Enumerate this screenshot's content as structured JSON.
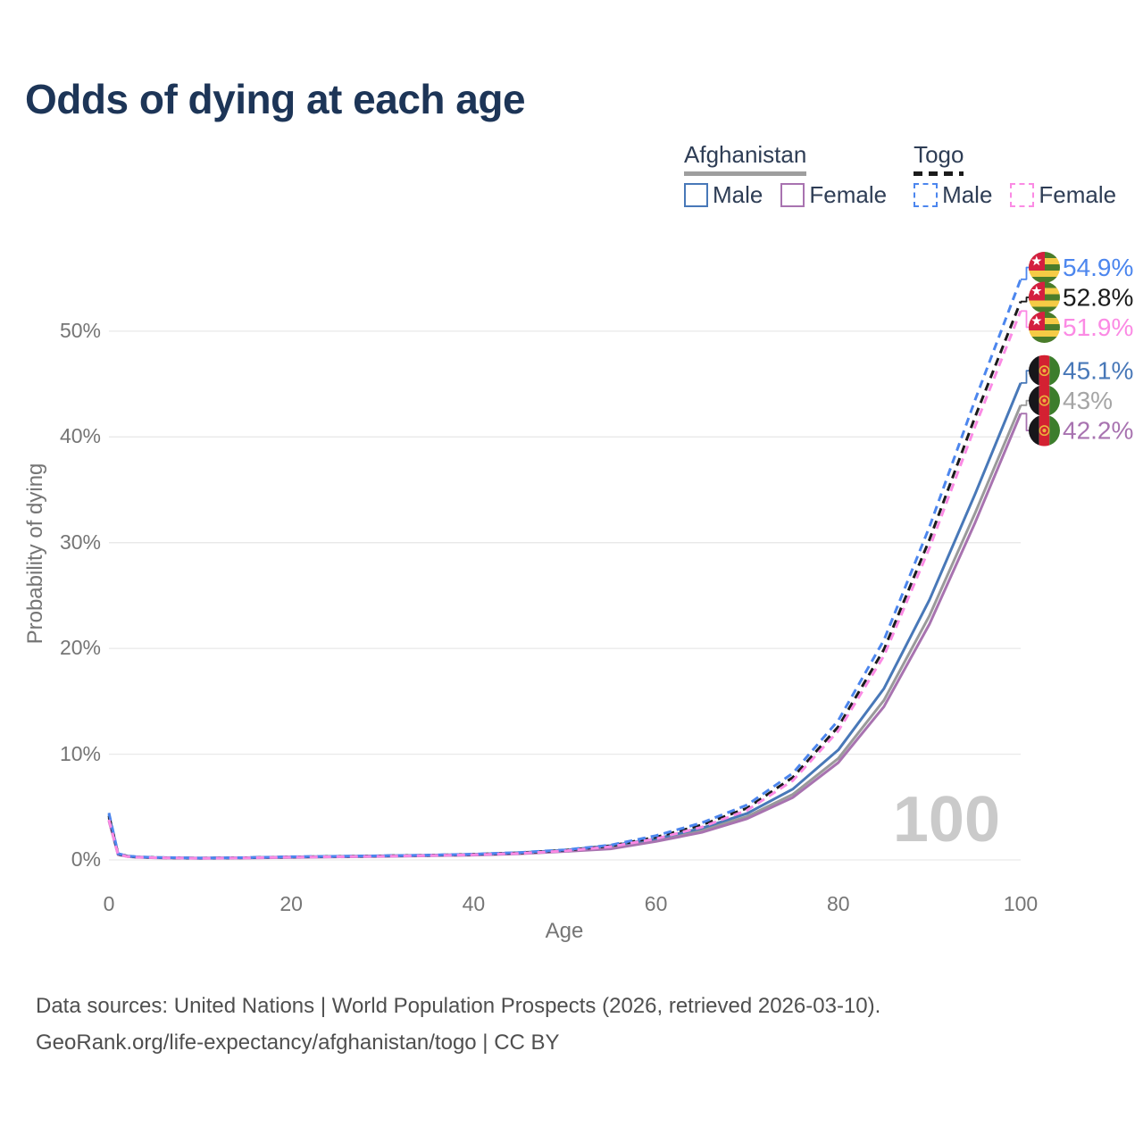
{
  "title": "Odds of dying at each age",
  "legend": {
    "groups": [
      {
        "label": "Afghanistan",
        "line_style": "solid",
        "underline_color": "#9e9e9e",
        "items": [
          {
            "label": "Male",
            "color": "#4878b8"
          },
          {
            "label": "Female",
            "color": "#a873b0"
          }
        ]
      },
      {
        "label": "Togo",
        "line_style": "dashed",
        "underline_color": "#1b1b1b",
        "items": [
          {
            "label": "Male",
            "color": "#4c86ee"
          },
          {
            "label": "Female",
            "color": "#fb8ae4"
          }
        ]
      }
    ]
  },
  "watermark_age": "100",
  "footer": {
    "line1": "Data sources: United Nations | World Population Prospects (2026, retrieved 2026-03-10).",
    "line2": "GeoRank.org/life-expectancy/afghanistan/togo | CC BY"
  },
  "chart_data": {
    "type": "line",
    "title": "Odds of dying at each age",
    "xlabel": "Age",
    "ylabel": "Probability of dying",
    "xlim": [
      0,
      100
    ],
    "ylim_pct": [
      0,
      56
    ],
    "grid": "horizontal",
    "legend_position": "top-right",
    "x_ticks": [
      0,
      20,
      40,
      60,
      80,
      100
    ],
    "x_tick_labels": [
      "0",
      "20",
      "40",
      "60",
      "80",
      "100"
    ],
    "y_ticks_pct": [
      0,
      10,
      20,
      30,
      40,
      50
    ],
    "y_tick_labels": [
      "0%",
      "10%",
      "20%",
      "30%",
      "40%",
      "50%"
    ],
    "grid_color": "#e9e9e9",
    "axis_text_color": "#757575",
    "ages": [
      0,
      1,
      2,
      3,
      5,
      10,
      15,
      20,
      25,
      30,
      35,
      40,
      45,
      50,
      55,
      60,
      65,
      70,
      75,
      80,
      85,
      90,
      95,
      100
    ],
    "series": [
      {
        "name": "Togo — Male",
        "country": "Togo",
        "sex": "Male",
        "color": "#4c86ee",
        "dashed": true,
        "flag": "togo",
        "end_label": "54.9%",
        "end_value_pct": 54.9,
        "values_pct": [
          4.45,
          0.6,
          0.38,
          0.3,
          0.24,
          0.18,
          0.22,
          0.3,
          0.35,
          0.4,
          0.46,
          0.55,
          0.7,
          0.95,
          1.4,
          2.3,
          3.5,
          5.2,
          8.2,
          13.2,
          20.8,
          31.5,
          43.5,
          54.9
        ]
      },
      {
        "name": "Togo — Both sexes",
        "country": "Togo",
        "sex": "Both",
        "color": "#1b1b1b",
        "dashed": true,
        "flag": "togo",
        "end_label": "52.8%",
        "end_value_pct": 52.8,
        "values_pct": [
          4.15,
          0.56,
          0.36,
          0.28,
          0.22,
          0.17,
          0.21,
          0.28,
          0.33,
          0.38,
          0.44,
          0.52,
          0.66,
          0.9,
          1.32,
          2.15,
          3.3,
          4.9,
          7.8,
          12.6,
          19.9,
          30.3,
          41.9,
          52.8
        ]
      },
      {
        "name": "Togo — Female",
        "country": "Togo",
        "sex": "Female",
        "color": "#fb8ae4",
        "dashed": true,
        "flag": "togo",
        "end_label": "51.9%",
        "end_value_pct": 51.9,
        "values_pct": [
          3.8,
          0.52,
          0.33,
          0.26,
          0.21,
          0.16,
          0.19,
          0.26,
          0.3,
          0.35,
          0.41,
          0.49,
          0.62,
          0.85,
          1.25,
          2.0,
          3.1,
          4.7,
          7.5,
          12.2,
          19.3,
          29.5,
          41.0,
          51.9
        ]
      },
      {
        "name": "Afghanistan — Male",
        "country": "Afghanistan",
        "sex": "Male",
        "color": "#4878b8",
        "dashed": false,
        "flag": "afghanistan",
        "end_label": "45.1%",
        "end_value_pct": 45.1,
        "values_pct": [
          4.3,
          0.58,
          0.37,
          0.29,
          0.23,
          0.18,
          0.21,
          0.29,
          0.34,
          0.39,
          0.45,
          0.53,
          0.68,
          0.92,
          1.35,
          2.0,
          3.0,
          4.4,
          6.7,
          10.4,
          16.2,
          24.6,
          34.6,
          45.1
        ]
      },
      {
        "name": "Afghanistan — Both sexes",
        "country": "Afghanistan",
        "sex": "Both",
        "color": "#9a9a9a",
        "label_color": "#a5a5a5",
        "dashed": false,
        "flag": "afghanistan",
        "end_label": "43%",
        "end_value_pct": 43.0,
        "values_pct": [
          4.0,
          0.54,
          0.35,
          0.27,
          0.21,
          0.16,
          0.2,
          0.27,
          0.31,
          0.36,
          0.42,
          0.5,
          0.63,
          0.86,
          1.2,
          1.85,
          2.8,
          4.1,
          6.2,
          9.6,
          15.1,
          23.1,
          32.8,
          43.0
        ]
      },
      {
        "name": "Afghanistan — Female",
        "country": "Afghanistan",
        "sex": "Female",
        "color": "#a873b0",
        "dashed": false,
        "flag": "afghanistan",
        "end_label": "42.2%",
        "end_value_pct": 42.2,
        "values_pct": [
          3.7,
          0.5,
          0.32,
          0.25,
          0.2,
          0.15,
          0.18,
          0.24,
          0.29,
          0.33,
          0.39,
          0.46,
          0.58,
          0.8,
          1.05,
          1.75,
          2.6,
          3.9,
          5.9,
          9.2,
          14.5,
          22.3,
          31.9,
          42.2
        ]
      }
    ]
  }
}
